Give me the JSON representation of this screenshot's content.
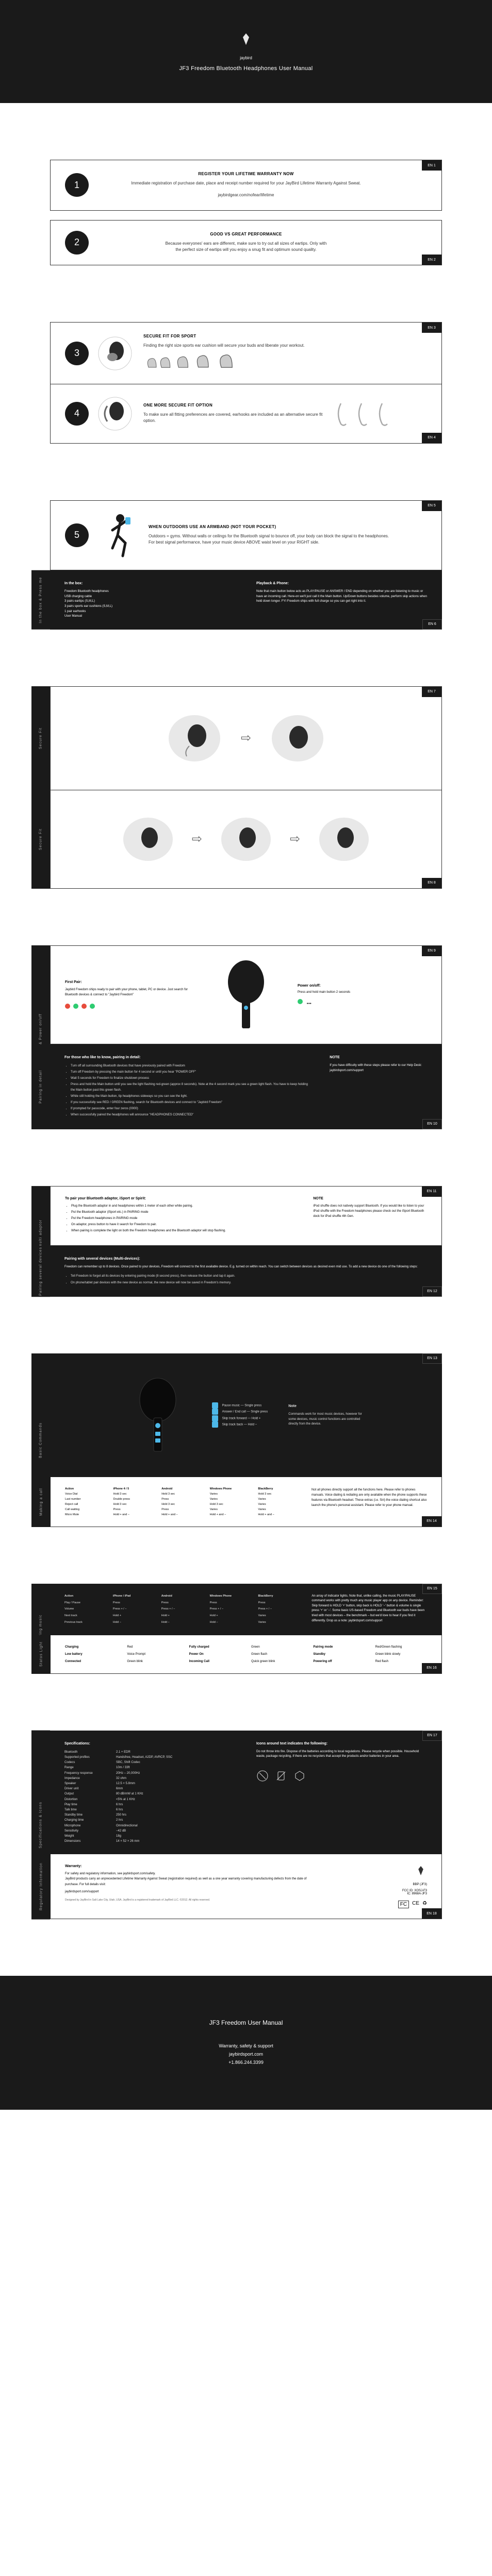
{
  "cover": {
    "brand": "jaybird",
    "title": "JF3 Freedom Bluetooth Headphones User Manual"
  },
  "steps": [
    {
      "num": "1",
      "page": "EN 1",
      "heading": "REGISTER YOUR LIFETIME WARRANTY NOW",
      "body": "Immediate registration of purchase date, place and receipt number required for your JayBird Lifetime Warranty Against Sweat.",
      "link": "jaybirdgear.com/nofear/lifetime"
    },
    {
      "num": "2",
      "page": "EN 2",
      "heading": "GOOD VS GREAT PERFORMANCE",
      "body": "Because everyones' ears are different, make sure to try out all sizes of eartips. Only with the perfect size of eartips will you enjoy a snug fit and optimum sound quality."
    },
    {
      "num": "3",
      "page": "EN 3",
      "heading": "SECURE FIT FOR SPORT",
      "body": "Finding the right size sports ear cushion will secure your buds and liberate your workout."
    },
    {
      "num": "4",
      "page": "EN 4",
      "heading": "ONE MORE SECURE FIT OPTION",
      "body": "To make sure all fitting preferences are covered, earhooks are included as an alternative secure fit option."
    },
    {
      "num": "5",
      "page": "EN 5",
      "heading": "WHEN OUTDOORS USE AN ARMBAND (NOT YOUR POCKET)",
      "body": "Outdoors = gyms. Without walls or ceilings for the Bluetooth signal to bounce off, your body can block the signal to the headphones. For best signal performance, have your music device ABOVE waist level on your RIGHT side."
    }
  ],
  "box": {
    "page_top": "EN 5",
    "page_bottom": "EN 6",
    "label": "In the box & Press me",
    "left_head": "In the box:",
    "left_items": [
      "Freedom Bluetooth headphones",
      "USB charging cable",
      "3 pairs eartips (S,M,L)",
      "3 pairs sports ear cushions (S,M,L)",
      "1 pair earhooks",
      "User Manual"
    ],
    "right_head": "Playback & Phone:",
    "right_body": "Note that main button below acts as PLAY/PAUSE or ANSWER / END depending on whether you are listening to music or have an incoming call. Here-on we'll just call it the Main button. Up/Down buttons besides volume, perform skip actions when held down longer. FYI Freedom ships with full charge so you can get right into it."
  },
  "securefit": {
    "label1": "Secure Fit",
    "page1": "EN 7",
    "label2": "Secure Fit",
    "page2": "EN 8"
  },
  "pairing": {
    "label1": "Pairing & Power on/off",
    "page1": "EN 9",
    "step_head_l": "First Pair:",
    "step_body_l": "Jaybird Freedom ships ready to pair with your phone, tablet, PC or device. Just search for Bluetooth devices & connect to \"Jaybird Freedom\"",
    "step_head_r": "Power on/off:",
    "step_body_r": "Press and hold main button 2 seconds",
    "label2": "Pairing in detail",
    "page2": "EN 10",
    "detail_head": "For those who like to know, pairing in detail:",
    "detail_items": [
      "Turn off all surrounding Bluetooth devices that have previously paired with Freedom",
      "Turn off Freedom by pressing the main button for 4 second or until you hear \"POWER OFF\"",
      "Wait 5 seconds for Freedom to finalize shutdown process",
      "Press and hold the Main button until you see the light flashing red-green (approx 8 seconds). Note at the 4 second mark you see a green light flash. You have to keep holding the Main button past this green flash.",
      "While still holding the Main button, tip headphones sideways so you can see the light.",
      "If you successfully see RED / GREEN flashing, search for Bluetooth devices and connect to \"Jaybird Freedom\"",
      "If prompted for passcode, enter four zeros (0000)",
      "When successfully paired the headphones will announce \"HEADPHONES CONNECTED\""
    ],
    "note_head": "NOTE",
    "note_body": "If you have difficulty with these steps please refer to our Help Desk: jaybirdsport.com/support"
  },
  "multipoint": {
    "label": "Pairing multi adaptor",
    "page": "EN 11",
    "head": "To pair your Bluetooth adaptor, iSport or Spirit:",
    "items": [
      "Plug the Bluetooth adaptor in and headphones within 1 meter of each other while pairing.",
      "Put the Bluetooth adaptor (iSport etc.) in PAIRING mode",
      "Put the Freedom headphones in PAIRING mode",
      "On adaptor, press button to have it search for Freedom to pair.",
      "When pairing is complete the light on both the Freedom headphones and the Bluetooth adaptor will stop flashing."
    ],
    "note_head": "NOTE",
    "note_body": "iPod shuffle does not natively support Bluetooth. If you would like to listen to your iPod shuffle with the Freedom headphones please check out the iSport Bluetooth dock for iPod shuffle 4th Gen."
  },
  "paired": {
    "label": "Pairing several devices",
    "page": "EN 12",
    "head": "Pairing with several devices (Multi-devices):",
    "body": "Freedom can remember up to 8 devices. Once paired to your devices, Freedom will connect to the first available device. E.g. turned on within reach. You can switch between devices as desired even mid use. To add a new device do one of the following steps:",
    "items": [
      "Tell Freedom to forget all its devices by entering pairing mode (8 second press), then release the button and tap it again.",
      "On phone/tablet pair devices with the new device as normal, the new device will now be saved in Freedom's memory."
    ]
  },
  "commands": {
    "label": "Basic Commands",
    "page": "EN 13",
    "items": [
      {
        "action": "Pause music",
        "do": "Single press"
      },
      {
        "action": "Answer / End call",
        "do": "Single press"
      },
      {
        "action": "Skip track forward",
        "do": "Hold +"
      },
      {
        "action": "Skip track back",
        "do": "Hold −"
      }
    ],
    "note_head": "Note",
    "note_body": "Commands work for most music devices, however for some devices, music control functions are controlled directly from the device."
  },
  "call": {
    "label": "Making a call",
    "page": "EN 14",
    "grid": [
      [
        "Action",
        "iPhone 4 / 5",
        "Android",
        "Windows Phone",
        "BlackBerry"
      ],
      [
        "Voice Dial",
        "Hold 3 sec",
        "Hold 3 sec",
        "Varies",
        "Hold 3 sec"
      ],
      [
        "Last number",
        "Double press",
        "Press",
        "Varies",
        "Varies"
      ],
      [
        "Reject call",
        "Hold 3 sec",
        "Hold 3 sec",
        "Hold 3 sec",
        "Varies"
      ],
      [
        "Call waiting",
        "Press",
        "Press",
        "Varies",
        "Varies"
      ],
      [
        "Micro Mute",
        "Hold + and −",
        "Hold + and −",
        "Hold + and −",
        "Hold + and −"
      ]
    ],
    "note": "Not all phones directly support all the functions here. Please refer to phones manuals. Voice dialing & redialing are only available when the phone supports these features via Bluetooth headset. These extras (i.e. Siri) the voice dialing shortcut also launch the phone's personal assistant. Please refer to your phone manual."
  },
  "music": {
    "label": "Playing music",
    "page": "EN 15",
    "grid": [
      [
        "Action",
        "iPhone / iPad",
        "Android",
        "Windows Phone",
        "BlackBerry"
      ],
      [
        "Play / Pause",
        "Press",
        "Press",
        "Press",
        "Press"
      ],
      [
        "Volume",
        "Press + / −",
        "Press + / −",
        "Press + / −",
        "Press + / −"
      ],
      [
        "Next track",
        "Hold +",
        "Hold +",
        "Hold +",
        "Varies"
      ],
      [
        "Previous track",
        "Hold −",
        "Hold −",
        "Hold −",
        "Varies"
      ]
    ],
    "side": "An array of indicator lights. Note that, unlike calling, the music PLAY/PAUSE command works with pretty much any music player app on any device. Reminder: Skip forward is HOLD '+' button, skip back is HOLD '−' button & volume is single press '+' or '−'. Some basic US-based Freedom and Bluetooth ear buds have been tried with most devices – the benchmark – but we'd love to hear if you find it differently. Drop us a note: jaybirdsport.com/support"
  },
  "status": {
    "label": "Status Light",
    "page": "EN 16",
    "rows": [
      [
        "Charging",
        "Red",
        "Fully charged",
        "Green",
        "Pairing mode",
        "Red/Green flashing"
      ],
      [
        "Low battery",
        "Voice Prompt",
        "Power On",
        "Green flash",
        "Standby",
        "Green blink slowly"
      ],
      [
        "Connected",
        "Green blink",
        "Incoming Call",
        "Quick green blink",
        "Powering off",
        "Red flash"
      ]
    ]
  },
  "specs": {
    "label": "Specifications & Icons",
    "page": "EN 17",
    "head": "Specifications:",
    "rows": [
      [
        "Bluetooth",
        "2.1 + EDR"
      ],
      [
        "Supported profiles",
        "Handsfree, Headset, A2DP, AVRCP, SSC"
      ],
      [
        "Codecs",
        "SBC, Shift Codec"
      ],
      [
        "Range",
        "10m / 33ft"
      ],
      [
        "Frequency response",
        "20Hz – 20,000Hz"
      ],
      [
        "Impedance",
        "32 ohm"
      ],
      [
        "Speaker",
        "12.5 × 5.8mm"
      ],
      [
        "Driver unit",
        "6mm"
      ],
      [
        "Output",
        "80 dB/mW at 1 KHz"
      ],
      [
        "Distortion",
        "<5% at 1 KHz"
      ],
      [
        "Play time",
        "6 hrs"
      ],
      [
        "Talk time",
        "6 hrs"
      ],
      [
        "Standby time",
        "250 hrs"
      ],
      [
        "Charging time",
        "2 hrs"
      ],
      [
        "Microphone",
        "Omnidirectional"
      ],
      [
        "Sensitivity",
        "−42 dB"
      ],
      [
        "Weight",
        "18g"
      ],
      [
        "Dimensions",
        "14 × 52 × 26 mm"
      ]
    ],
    "icons_head": "Icons around text indicates the following:",
    "icons_body": "Do not throw into fire. Dispose of the batteries according to local regulations. Please recycle when possible. Household waste, package recycling, if there are no recyclers that accept the products and/or batteries in your area."
  },
  "regulatory": {
    "label": "Regulatory Information",
    "page": "EN 18",
    "head": "Warranty:",
    "body": "For safety and regulatory information, see jaybirdsport.com/safety.\nJayBird products carry an unprecedented Lifetime Warranty Against Sweat (registration required) as well as a one year warranty covering manufacturing defects from the date of purchase. For full details visit:",
    "link": "jaybirdsport.com/support",
    "model": "BBP (JF3)",
    "fcc": "FCC ID: XOSJ-F3\nIC: 8968A-JF3",
    "designed": "Designed by JayBird in Salt Lake City, Utah, USA. JayBird is a registered trademark of JayBird LLC. ©2012. All rights reserved."
  },
  "footer": {
    "title": "JF3 Freedom User Manual",
    "line1": "Warranty, safety & support",
    "line2": "jaybirdsport.com",
    "line3": "+1.866.244.3399"
  }
}
